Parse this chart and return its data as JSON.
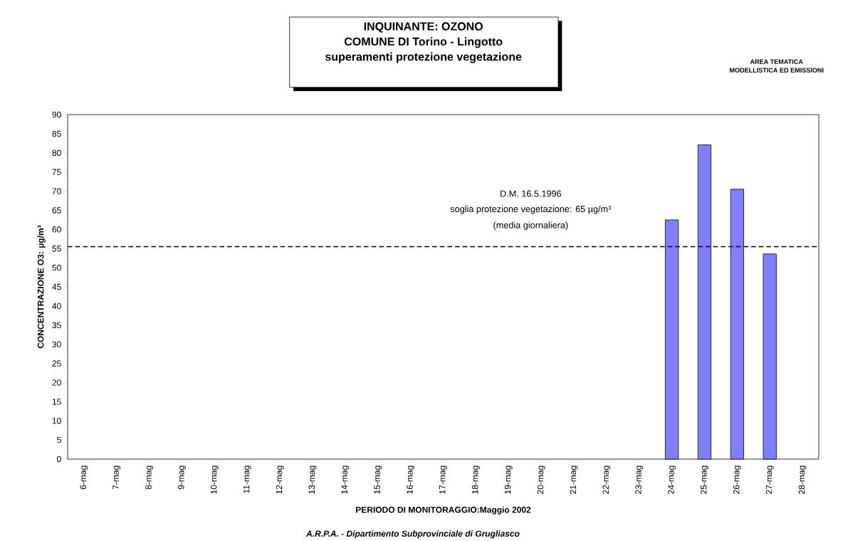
{
  "chart_data": {
    "type": "bar",
    "title": "INQUINANTE: OZONO",
    "subtitle": "COMUNE DI Torino - Lingotto",
    "annotations": [
      "superamenti protezione vegetazione",
      "D.M. 16.5.1996",
      "soglia protezione vegetazione: 65 µg/m³",
      "(media giornaliera)",
      "AREA TEMATICA",
      "MODELLISTICA ED EMISSIONI",
      "A.R.P.A. - Dipartimento Subprovinciale di Grugliasco"
    ],
    "xlabel": "PERIODO DI MONITORAGGIO:Maggio 2002",
    "ylabel": "CONCENTRAZIONE O3: µg/m³",
    "categories": [
      "6-mag",
      "7-mag",
      "8-mag",
      "9-mag",
      "10-mag",
      "11-mag",
      "12-mag",
      "13-mag",
      "14-mag",
      "15-mag",
      "16-mag",
      "17-mag",
      "18-mag",
      "19-mag",
      "20-mag",
      "21-mag",
      "22-mag",
      "23-mag",
      "24-mag",
      "25-mag",
      "26-mag",
      "27-mag",
      "28-mag"
    ],
    "values": [
      null,
      null,
      null,
      null,
      null,
      null,
      null,
      null,
      null,
      null,
      null,
      null,
      null,
      null,
      null,
      null,
      null,
      null,
      62.5,
      82.1,
      70.5,
      53.6,
      null
    ],
    "color": "#8080ff",
    "ylim": [
      0,
      90
    ],
    "yticks": [
      0,
      5,
      10,
      15,
      20,
      25,
      30,
      35,
      40,
      45,
      50,
      55,
      60,
      65,
      70,
      75,
      80,
      85,
      90
    ],
    "ref_lines": [
      {
        "axis": "y",
        "value": 55.5,
        "color": "#000000",
        "line_style": "dashed"
      }
    ],
    "grid": false
  }
}
